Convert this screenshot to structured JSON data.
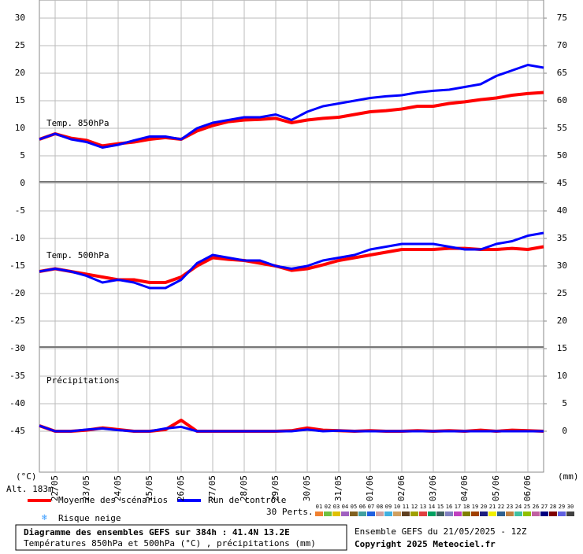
{
  "chart_data": {
    "type": "line",
    "ylabel": "(°C)",
    "y2label": "(mm)",
    "altitude": "Alt. 183m",
    "panel_labels": [
      "Temp. 850hPa",
      "Temp. 500hPa",
      "Précipitations"
    ],
    "x": [
      0,
      0.5,
      1,
      1.5,
      2,
      2.5,
      3,
      3.5,
      4,
      4.5,
      5,
      5.5,
      6,
      6.5,
      7,
      7.5,
      8,
      8.5,
      9,
      9.5,
      10,
      10.5,
      11,
      11.5,
      12,
      12.5,
      13,
      13.5,
      14,
      14.5,
      15,
      15.5,
      16
    ],
    "xlim": [
      0,
      16
    ],
    "xticks": [
      {
        "value": 0.5,
        "label": "22/05"
      },
      {
        "value": 1.5,
        "label": "23/05"
      },
      {
        "value": 2.5,
        "label": "24/05"
      },
      {
        "value": 3.5,
        "label": "25/05"
      },
      {
        "value": 4.5,
        "label": "26/05"
      },
      {
        "value": 5.5,
        "label": "27/05"
      },
      {
        "value": 6.5,
        "label": "28/05"
      },
      {
        "value": 7.5,
        "label": "29/05"
      },
      {
        "value": 8.5,
        "label": "30/05"
      },
      {
        "value": 9.5,
        "label": "31/05"
      },
      {
        "value": 10.5,
        "label": "01/06"
      },
      {
        "value": 11.5,
        "label": "02/06"
      },
      {
        "value": 12.5,
        "label": "03/06"
      },
      {
        "value": 13.5,
        "label": "04/06"
      },
      {
        "value": 14.5,
        "label": "05/06"
      },
      {
        "value": 15.5,
        "label": "06/06"
      }
    ],
    "ylim": [
      -52.43,
      33.29
    ],
    "yticks": [
      30,
      25,
      20,
      15,
      10,
      5,
      0,
      -5,
      -10,
      -15,
      -20,
      -25,
      -30,
      -35,
      -40,
      -45
    ],
    "y2lim": [
      -7.43,
      78.29
    ],
    "y2ticks": [
      75,
      70,
      65,
      60,
      55,
      50,
      45,
      40,
      35,
      30,
      25,
      20,
      15,
      10,
      5,
      0
    ],
    "grid": true,
    "series": [
      {
        "name": "Moyenne des scénarios",
        "color": "#ff0000",
        "temp850": [
          8,
          9,
          8.2,
          7.8,
          6.8,
          7.2,
          7.5,
          8,
          8.3,
          8,
          9.5,
          10.5,
          11.2,
          11.5,
          11.6,
          11.8,
          11,
          11.5,
          11.8,
          12,
          12.5,
          13,
          13.2,
          13.5,
          14,
          14,
          14.5,
          14.8,
          15.2,
          15.5,
          16,
          16.3,
          16.5
        ],
        "temp500": [
          -16,
          -15.5,
          -16,
          -16.5,
          -17,
          -17.5,
          -17.5,
          -18,
          -18,
          -17,
          -15,
          -13.5,
          -13.8,
          -14,
          -14.5,
          -15,
          -15.8,
          -15.5,
          -14.8,
          -14,
          -13.5,
          -13,
          -12.5,
          -12,
          -12,
          -12,
          -11.8,
          -11.8,
          -12,
          -12,
          -11.8,
          -12,
          -11.5
        ],
        "precip": [
          1,
          0,
          0,
          0.2,
          0.6,
          0.3,
          0,
          0,
          0.3,
          2,
          0,
          0,
          0,
          0,
          0,
          0,
          0.1,
          0.6,
          0.2,
          0.1,
          0,
          0.1,
          0,
          0,
          0.1,
          0,
          0.1,
          0,
          0.2,
          0,
          0.2,
          0.1,
          0
        ]
      },
      {
        "name": "Run de contrôle",
        "color": "#0000ff",
        "temp850": [
          8,
          9,
          8,
          7.5,
          6.5,
          7,
          7.8,
          8.5,
          8.5,
          8,
          10,
          11,
          11.5,
          12,
          12,
          12.5,
          11.5,
          13,
          14,
          14.5,
          15,
          15.5,
          15.8,
          16,
          16.5,
          16.8,
          17,
          17.5,
          18,
          19.5,
          20.5,
          21.5,
          21
        ],
        "temp500": [
          -16,
          -15.5,
          -16,
          -16.8,
          -18,
          -17.5,
          -18,
          -19,
          -19,
          -17.5,
          -14.5,
          -13,
          -13.5,
          -14,
          -14,
          -15,
          -15.5,
          -15,
          -14,
          -13.5,
          -13,
          -12,
          -11.5,
          -11,
          -11,
          -11,
          -11.5,
          -12,
          -12,
          -11,
          -10.5,
          -9.5,
          -9
        ],
        "precip": [
          1,
          0,
          0,
          0.3,
          0.5,
          0.2,
          0,
          0,
          0.5,
          0.8,
          0,
          0,
          0,
          0,
          0,
          0,
          0,
          0.3,
          0,
          0.1,
          0,
          0,
          0,
          0,
          0,
          0,
          0,
          0,
          0,
          0,
          0,
          0,
          0
        ]
      }
    ],
    "perts_label": "30 Perts.",
    "perts": [
      {
        "label": "01",
        "color": "#f08030"
      },
      {
        "label": "02",
        "color": "#70c040"
      },
      {
        "label": "03",
        "color": "#e0c000"
      },
      {
        "label": "04",
        "color": "#a060c0"
      },
      {
        "label": "05",
        "color": "#806020"
      },
      {
        "label": "06",
        "color": "#40a0a0"
      },
      {
        "label": "07",
        "color": "#2060e0"
      },
      {
        "label": "08",
        "color": "#d0a0a0"
      },
      {
        "label": "09",
        "color": "#40b0e0"
      },
      {
        "label": "10",
        "color": "#d0a060"
      },
      {
        "label": "11",
        "color": "#604020"
      },
      {
        "label": "12",
        "color": "#a0a000"
      },
      {
        "label": "13",
        "color": "#e04040"
      },
      {
        "label": "14",
        "color": "#00a060"
      },
      {
        "label": "15",
        "color": "#406060"
      },
      {
        "label": "16",
        "color": "#8080c0"
      },
      {
        "label": "17",
        "color": "#c040c0"
      },
      {
        "label": "18",
        "color": "#808000"
      },
      {
        "label": "19",
        "color": "#a04000"
      },
      {
        "label": "20",
        "color": "#202080"
      },
      {
        "label": "21",
        "color": "#f0f000"
      },
      {
        "label": "22",
        "color": "#306090"
      },
      {
        "label": "23",
        "color": "#c08040"
      },
      {
        "label": "24",
        "color": "#40c0a0"
      },
      {
        "label": "25",
        "color": "#90c000"
      },
      {
        "label": "26",
        "color": "#c060a0"
      },
      {
        "label": "27",
        "color": "#000080"
      },
      {
        "label": "28",
        "color": "#800000"
      },
      {
        "label": "29",
        "color": "#6060e0"
      },
      {
        "label": "30",
        "color": "#404040"
      }
    ],
    "snow_label": "Risque neige",
    "title": "Diagramme des ensembles GEFS sur 384h : 41.4N 13.2E",
    "subtitle": "Températures 850hPa et 500hPa (°C) , précipitations (mm)",
    "run_info": "Ensemble GEFS du 21/05/2025 - 12Z",
    "copyright": "Copyright 2025 Meteociel.fr"
  }
}
